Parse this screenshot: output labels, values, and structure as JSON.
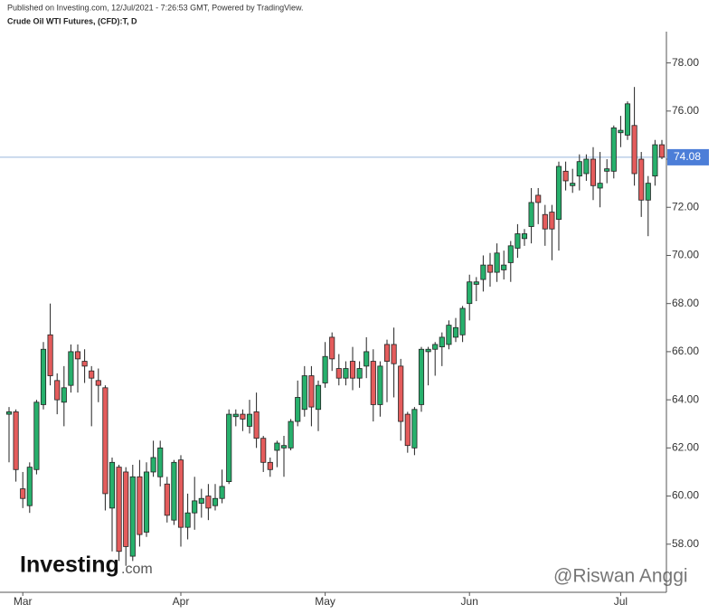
{
  "header": {
    "published": "Published on Investing.com, 12/Jul/2021 - 7:26:53 GMT, Powered by TradingView.",
    "symbol": "Crude Oil WTI Futures, (CFD):T, D"
  },
  "watermark": {
    "logo": "Investing",
    "logo_suffix": ".com",
    "author": "@Riswan Anggi"
  },
  "chart_data": {
    "type": "candlestick",
    "categories": [
      null,
      null,
      "Mar",
      null,
      null,
      null,
      null,
      null,
      null,
      null,
      null,
      null,
      null,
      null,
      null,
      null,
      null,
      null,
      null,
      null,
      null,
      null,
      null,
      null,
      null,
      "Apr",
      null,
      null,
      null,
      null,
      null,
      null,
      null,
      null,
      null,
      null,
      null,
      null,
      null,
      null,
      null,
      null,
      null,
      null,
      null,
      null,
      "May",
      null,
      null,
      null,
      null,
      null,
      null,
      null,
      null,
      null,
      null,
      null,
      null,
      null,
      null,
      null,
      null,
      null,
      null,
      null,
      null,
      "Jun",
      null,
      null,
      null,
      null,
      null,
      null,
      null,
      null,
      null,
      null,
      null,
      null,
      null,
      null,
      null,
      null,
      null,
      null,
      null,
      null,
      null,
      "Jul",
      null,
      null,
      null,
      null,
      null,
      null
    ],
    "open": [
      63.4,
      63.5,
      60.3,
      59.6,
      61.1,
      63.8,
      66.7,
      64.8,
      63.9,
      64.6,
      66.0,
      65.6,
      65.2,
      64.8,
      64.5,
      59.5,
      61.2,
      61.0,
      57.5,
      60.8,
      58.5,
      61.0,
      60.8,
      60.5,
      59.0,
      61.5,
      58.7,
      59.3,
      59.7,
      60.0,
      59.6,
      59.9,
      60.6,
      63.3,
      63.4,
      62.9,
      63.5,
      62.4,
      61.4,
      61.9,
      62.0,
      62.0,
      63.1,
      63.6,
      65.0,
      63.6,
      64.7,
      66.6,
      65.3,
      64.9,
      65.6,
      64.9,
      65.4,
      65.6,
      63.8,
      66.3,
      66.3,
      65.4,
      63.4,
      62.0,
      63.8,
      66.0,
      66.1,
      66.2,
      66.3,
      66.6,
      66.7,
      68.0,
      68.8,
      69.0,
      69.6,
      69.3,
      69.4,
      69.7,
      70.3,
      70.7,
      71.2,
      72.5,
      71.7,
      71.8,
      71.5,
      73.5,
      72.9,
      73.3,
      73.4,
      74.0,
      72.8,
      73.5,
      73.5,
      75.1,
      75.0,
      75.4,
      74.0,
      72.3,
      73.3,
      74.6
    ],
    "high": [
      63.7,
      63.6,
      61.0,
      61.4,
      64.0,
      66.4,
      68.0,
      65.1,
      65.4,
      66.3,
      66.3,
      66.1,
      65.4,
      65.3,
      64.6,
      61.6,
      61.3,
      61.2,
      61.3,
      61.5,
      61.4,
      62.3,
      62.3,
      60.8,
      61.5,
      61.7,
      60.1,
      60.8,
      60.3,
      60.5,
      60.5,
      61.1,
      63.6,
      63.6,
      63.6,
      64.0,
      64.3,
      62.5,
      61.6,
      62.3,
      62.5,
      63.2,
      64.8,
      65.4,
      65.4,
      64.8,
      66.4,
      66.8,
      65.9,
      65.6,
      66.2,
      65.6,
      66.6,
      66.1,
      65.6,
      66.5,
      67.0,
      65.7,
      63.5,
      63.7,
      66.2,
      66.2,
      66.4,
      66.8,
      67.3,
      67.4,
      67.9,
      69.2,
      69.1,
      70.0,
      70.1,
      70.5,
      70.2,
      70.6,
      71.3,
      71.1,
      72.8,
      72.8,
      72.1,
      72.1,
      73.9,
      73.9,
      73.6,
      74.2,
      74.2,
      74.5,
      74.3,
      74.0,
      75.4,
      75.8,
      76.4,
      77.0,
      74.3,
      73.3,
      74.8,
      74.8
    ],
    "low": [
      61.4,
      60.6,
      59.5,
      59.3,
      60.9,
      63.6,
      64.6,
      63.4,
      62.9,
      64.3,
      64.3,
      64.7,
      62.9,
      63.9,
      59.4,
      57.7,
      57.3,
      57.1,
      57.3,
      57.9,
      58.3,
      60.8,
      60.4,
      58.9,
      58.8,
      57.9,
      58.2,
      58.6,
      59.1,
      59.0,
      59.4,
      59.7,
      60.5,
      62.9,
      62.7,
      62.6,
      62.0,
      61.0,
      60.8,
      61.2,
      60.8,
      61.9,
      62.9,
      63.3,
      62.9,
      62.7,
      64.5,
      65.2,
      64.6,
      64.6,
      64.4,
      64.5,
      64.9,
      63.1,
      63.3,
      63.9,
      64.1,
      62.3,
      61.8,
      61.7,
      63.5,
      64.6,
      65.0,
      65.4,
      66.1,
      66.4,
      66.4,
      67.3,
      68.1,
      68.5,
      68.7,
      68.9,
      69.0,
      68.9,
      69.9,
      70.4,
      70.5,
      71.3,
      70.4,
      69.8,
      70.2,
      72.7,
      72.6,
      72.7,
      73.1,
      72.3,
      72.0,
      73.0,
      73.2,
      74.5,
      74.8,
      72.9,
      71.6,
      70.8,
      72.9,
      74.0
    ],
    "close": [
      63.5,
      61.1,
      59.9,
      61.2,
      63.9,
      66.1,
      65.0,
      64.0,
      64.5,
      66.0,
      65.7,
      65.4,
      64.9,
      64.6,
      60.1,
      61.4,
      57.7,
      57.9,
      60.8,
      58.4,
      61.0,
      61.6,
      62.0,
      59.2,
      61.4,
      58.7,
      59.3,
      59.8,
      59.9,
      59.5,
      59.9,
      60.4,
      63.4,
      63.4,
      63.2,
      63.4,
      62.4,
      61.4,
      61.1,
      62.2,
      62.1,
      63.1,
      64.1,
      65.0,
      63.7,
      64.6,
      65.8,
      65.7,
      64.9,
      65.3,
      64.9,
      65.3,
      66.0,
      63.8,
      65.4,
      65.6,
      65.5,
      63.1,
      62.1,
      63.6,
      66.1,
      66.1,
      66.3,
      66.6,
      67.1,
      67.0,
      67.8,
      68.9,
      68.9,
      69.6,
      69.3,
      70.1,
      69.6,
      70.4,
      70.9,
      70.9,
      72.2,
      72.2,
      71.1,
      71.1,
      73.7,
      73.1,
      73.0,
      73.9,
      74.0,
      72.9,
      73.0,
      73.6,
      75.3,
      75.2,
      76.3,
      73.4,
      72.3,
      73.0,
      74.6,
      74.08
    ],
    "up_color": "#27b06c",
    "down_color": "#e45c5c",
    "ylim": [
      56.0,
      79.3
    ],
    "yticks": [
      {
        "value": 58,
        "label": "58.00"
      },
      {
        "value": 60,
        "label": "60.00"
      },
      {
        "value": 62,
        "label": "62.00"
      },
      {
        "value": 64,
        "label": "64.00"
      },
      {
        "value": 66,
        "label": "66.00"
      },
      {
        "value": 68,
        "label": "68.00"
      },
      {
        "value": 70,
        "label": "70.00"
      },
      {
        "value": 72,
        "label": "72.00"
      },
      {
        "value": 74,
        "label": "74.00"
      },
      {
        "value": 76,
        "label": "76.00"
      },
      {
        "value": 78,
        "label": "78.00"
      }
    ],
    "last_price": 74.08,
    "last_price_color": "#4c7ed8"
  }
}
